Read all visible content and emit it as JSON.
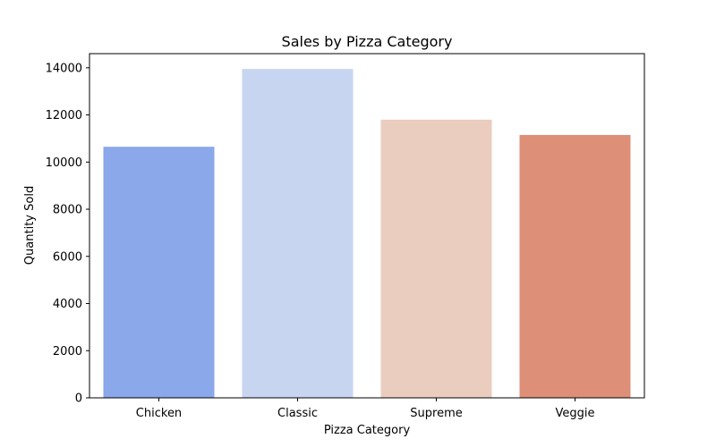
{
  "chart_data": {
    "type": "bar",
    "title": "Sales by Pizza Category",
    "xlabel": "Pizza Category",
    "ylabel": "Quantity Sold",
    "categories": [
      "Chicken",
      "Classic",
      "Supreme",
      "Veggie"
    ],
    "values": [
      10650,
      13950,
      11800,
      11150
    ],
    "ylim": [
      0,
      14600
    ],
    "yticks": [
      0,
      2000,
      4000,
      6000,
      8000,
      10000,
      12000,
      14000
    ],
    "colors": [
      "#8aa8ea",
      "#c7d5f0",
      "#eacdbf",
      "#de8f77"
    ],
    "grid": false,
    "legend": "none"
  }
}
